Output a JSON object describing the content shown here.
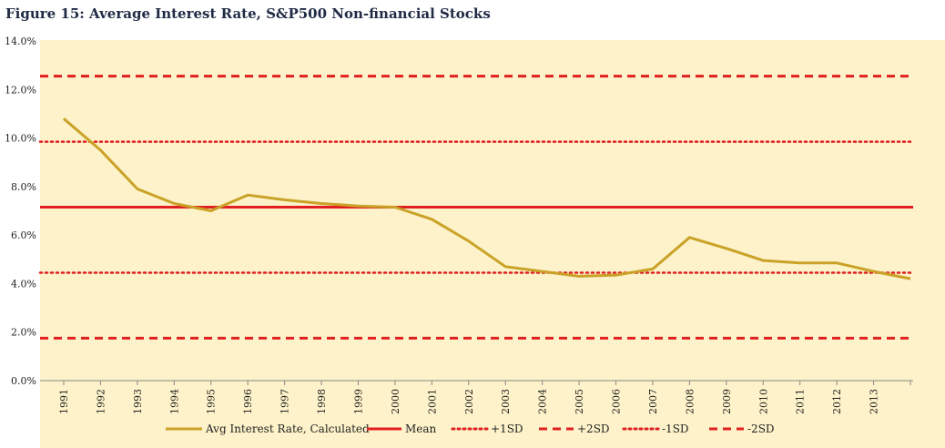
{
  "title": "Figure 15: Average Interest Rate, S&P500 Non-financial Stocks",
  "chart_data": {
    "type": "line",
    "x": [
      "1991",
      "1992",
      "1993",
      "1994",
      "1995",
      "1996",
      "1997",
      "1998",
      "1999",
      "2000",
      "2001",
      "2002",
      "2003",
      "2004",
      "2005",
      "2006",
      "2007",
      "2008",
      "2009",
      "2010",
      "2011",
      "2012",
      "2013",
      ""
    ],
    "series": [
      {
        "name": "Avg Interest Rate, Calculated",
        "color": "#c9a227",
        "style": "solid",
        "values": [
          10.8,
          9.5,
          7.9,
          7.3,
          7.0,
          7.65,
          7.45,
          7.3,
          7.2,
          7.15,
          6.65,
          5.75,
          4.7,
          4.5,
          4.3,
          4.35,
          4.6,
          5.9,
          5.45,
          4.95,
          4.85,
          4.85,
          4.5,
          4.2
        ]
      },
      {
        "name": "Mean",
        "color": "#e02020",
        "style": "solid",
        "value": 7.15
      },
      {
        "name": "+1SD",
        "color": "#e02020",
        "style": "dotted",
        "value": 9.85
      },
      {
        "name": "+2SD",
        "color": "#e02020",
        "style": "dashed",
        "value": 12.55
      },
      {
        "name": "-1SD",
        "color": "#e02020",
        "style": "dotted",
        "value": 4.45
      },
      {
        "name": "-2SD",
        "color": "#e02020",
        "style": "dashed",
        "value": 1.75
      }
    ],
    "yticks": [
      "0.0%",
      "2.0%",
      "4.0%",
      "6.0%",
      "8.0%",
      "10.0%",
      "12.0%",
      "14.0%"
    ],
    "ylim": [
      0,
      14
    ],
    "legend_position": "bottom",
    "background": "#fdf2c9"
  }
}
